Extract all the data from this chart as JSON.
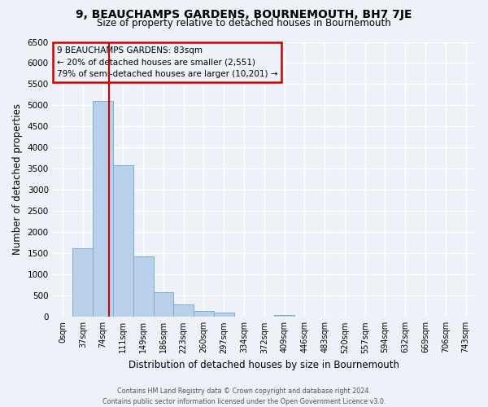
{
  "title": "9, BEAUCHAMPS GARDENS, BOURNEMOUTH, BH7 7JE",
  "subtitle": "Size of property relative to detached houses in Bournemouth",
  "xlabel": "Distribution of detached houses by size in Bournemouth",
  "ylabel": "Number of detached properties",
  "footer_line1": "Contains HM Land Registry data © Crown copyright and database right 2024.",
  "footer_line2": "Contains public sector information licensed under the Open Government Licence v3.0.",
  "bin_labels": [
    "0sqm",
    "37sqm",
    "74sqm",
    "111sqm",
    "149sqm",
    "186sqm",
    "223sqm",
    "260sqm",
    "297sqm",
    "334sqm",
    "372sqm",
    "409sqm",
    "446sqm",
    "483sqm",
    "520sqm",
    "557sqm",
    "594sqm",
    "632sqm",
    "669sqm",
    "706sqm",
    "743sqm"
  ],
  "bar_values": [
    0,
    1620,
    5100,
    3580,
    1430,
    590,
    300,
    150,
    100,
    0,
    0,
    50,
    0,
    0,
    0,
    0,
    0,
    0,
    0,
    0,
    0
  ],
  "bar_color": "#b8d0ea",
  "bar_edgecolor": "#7aadd4",
  "vline_color": "#cc0000",
  "vline_pos": 2.3,
  "ylim_max": 6500,
  "ytick_step": 500,
  "annotation_title": "9 BEAUCHAMPS GARDENS: 83sqm",
  "annotation_line1": "← 20% of detached houses are smaller (2,551)",
  "annotation_line2": "79% of semi-detached houses are larger (10,201) →",
  "annotation_box_edgecolor": "#cc0000",
  "bg_color": "#eef2f8",
  "grid_color": "#ffffff",
  "title_fontsize": 10,
  "subtitle_fontsize": 8.5
}
